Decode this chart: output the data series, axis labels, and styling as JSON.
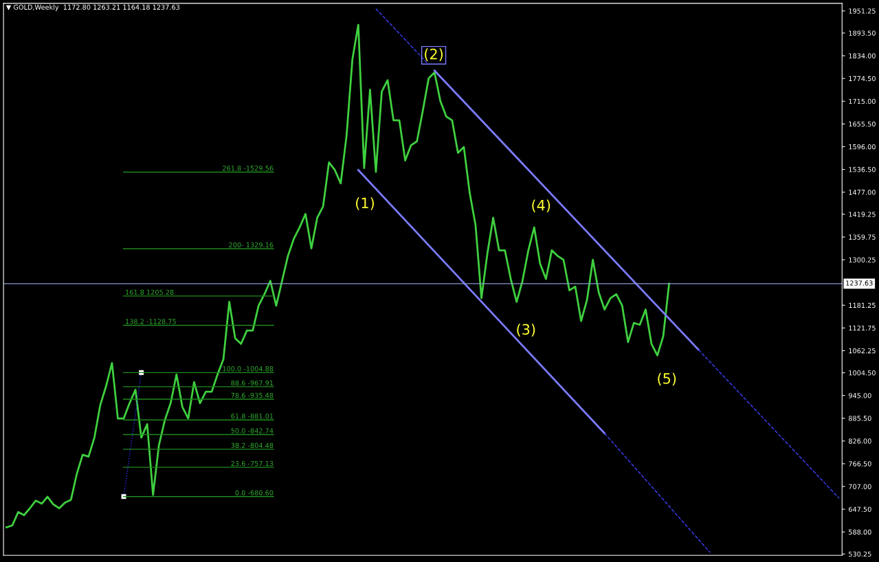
{
  "chart_data": {
    "type": "line",
    "title": "▼ GOLD,Weekly  1172.80 1263.21 1164.18 1237.63",
    "tick_labels": "y",
    "grid": false,
    "legend": false,
    "categories": [
      null,
      null,
      null,
      null,
      null,
      null,
      null,
      null,
      null,
      null,
      null,
      null,
      null,
      null,
      null,
      null,
      null,
      null,
      null,
      null,
      null,
      null,
      null,
      null,
      null,
      null,
      null,
      null,
      null,
      null,
      null,
      null,
      null,
      null,
      null,
      null,
      null,
      null,
      null,
      null,
      null,
      null,
      null,
      null,
      null,
      null,
      null,
      null,
      null,
      null,
      null,
      null,
      null,
      null,
      null,
      null,
      null,
      null,
      null,
      null,
      null,
      null,
      null,
      null,
      null,
      null,
      null,
      null,
      null,
      null,
      null,
      null,
      null,
      null,
      null,
      null,
      null,
      null,
      null,
      null,
      null,
      null,
      null,
      null,
      null,
      null,
      null,
      null,
      null,
      null,
      null,
      null,
      null,
      null,
      null,
      null,
      null,
      null,
      null,
      null,
      null,
      null,
      null,
      null,
      null,
      null,
      null,
      null,
      null,
      null,
      null,
      null,
      null,
      null,
      null,
      null,
      null,
      null,
      null,
      null,
      null,
      null,
      null,
      null,
      null,
      null,
      null,
      null,
      null,
      null,
      null,
      null,
      null,
      null,
      null,
      null,
      null,
      null,
      null,
      null,
      null,
      null,
      null
    ],
    "ylim": [
      527,
      1971
    ],
    "yticks": [
      530.25,
      {
        "value": 588,
        "label": "588.00"
      },
      {
        "value": 647.5,
        "label": "647.50"
      },
      {
        "value": 707,
        "label": "707.00"
      },
      {
        "value": 766.5,
        "label": "766.50"
      },
      {
        "value": 826,
        "label": "826.00"
      },
      {
        "value": 885.5,
        "label": "885.50"
      },
      {
        "value": 945,
        "label": "945.00"
      },
      {
        "value": 1004.5,
        "label": "1004.50"
      },
      1062.25,
      1121.75,
      1181.25,
      1300.25,
      1359.75,
      1419.25,
      {
        "value": 1477,
        "label": "1477.00"
      },
      {
        "value": 1536.5,
        "label": "1536.50"
      },
      {
        "value": 1596,
        "label": "1596.00"
      },
      {
        "value": 1655.5,
        "label": "1655.50"
      },
      {
        "value": 1715,
        "label": "1715.00"
      },
      {
        "value": 1774.5,
        "label": "1774.50"
      },
      {
        "value": 1834,
        "label": "1834.00"
      },
      {
        "value": 1893.5,
        "label": "1893.50"
      },
      1951.25
    ],
    "ref_lines": [
      {
        "axis": "y",
        "value": 1237.63,
        "label": "1237.63",
        "color": "#8a9ad0"
      },
      {
        "axis": "y",
        "value": 680.6,
        "color": "#1f8a1f"
      },
      {
        "axis": "y",
        "value": 757.13,
        "color": "#1f8a1f"
      },
      {
        "axis": "y",
        "value": 804.48,
        "color": "#1f8a1f"
      },
      {
        "axis": "y",
        "value": 842.74,
        "color": "#1f8a1f"
      },
      {
        "axis": "y",
        "value": 881.01,
        "color": "#1f8a1f"
      },
      {
        "axis": "y",
        "value": 935.48,
        "color": "#1f8a1f"
      },
      {
        "axis": "y",
        "value": 967.91,
        "color": "#1f8a1f"
      },
      {
        "axis": "y",
        "value": 1004.88,
        "color": "#1f8a1f"
      },
      {
        "axis": "y",
        "value": 1128.75,
        "color": "#1f8a1f"
      },
      {
        "axis": "y",
        "value": 1205.28,
        "color": "#1f8a1f"
      },
      {
        "axis": "y",
        "value": 1329.16,
        "color": "#1f8a1f"
      },
      {
        "axis": "y",
        "value": 1529.56,
        "color": "#1f8a1f"
      }
    ],
    "annotations": [
      "(1)",
      "(2)",
      "(3)",
      "(4)",
      "(5)",
      {
        "text": "0.0 -680.60",
        "y": 680.6
      },
      {
        "text": "23.6 -757.13",
        "y": 757.13
      },
      {
        "text": "38.2 -804.48",
        "y": 804.48
      },
      {
        "text": "50.0 -842.74",
        "y": 842.74
      },
      {
        "text": "61.8 -881.01",
        "y": 881.01
      },
      {
        "text": "78.6 -935.48",
        "y": 935.48
      },
      {
        "text": "88.6 -967.91",
        "y": 967.91
      },
      {
        "text": "100.0 -1004.88",
        "y": 1004.88
      },
      {
        "text": "138.2 -1128.75",
        "y": 1128.75
      },
      {
        "text": "161.8 1205.28",
        "y": 1205.28
      },
      {
        "text": "200- 1329.16",
        "y": 1329.16
      },
      {
        "text": "261.8 -1529.56",
        "y": 1529.56
      }
    ],
    "series": [
      {
        "color": "#3fd03f",
        "line_style": "solid",
        "marker": "none",
        "values": [
          600,
          605,
          640,
          632,
          650,
          670,
          662,
          680,
          660,
          650,
          665,
          672,
          740,
          790,
          785,
          835,
          920,
          970,
          1030,
          885,
          885,
          925,
          960,
          835,
          870,
          685,
          815,
          880,
          925,
          1000,
          915,
          885,
          980,
          925,
          955,
          955,
          1000,
          1040,
          1190,
          1095,
          1080,
          1115,
          1115,
          1180,
          1210,
          1245,
          1180,
          1245,
          1310,
          1355,
          1385,
          1420,
          1330,
          1410,
          1440,
          1555,
          1535,
          1500,
          1625,
          1825,
          1915,
          1540,
          1745,
          1530,
          1740,
          1770,
          1665,
          1665,
          1560,
          1600,
          1610,
          1690,
          1775,
          1790,
          1715,
          1675,
          1665,
          1580,
          1595,
          1475,
          1390,
          1200,
          1315,
          1410,
          1325,
          1325,
          1250,
          1190,
          1245,
          1325,
          1385,
          1290,
          1250,
          1325,
          1310,
          1300,
          1220,
          1230,
          1140,
          1195,
          1300,
          1215,
          1170,
          1200,
          1210,
          1180,
          1085,
          1135,
          1130,
          1170,
          1080,
          1050,
          1100,
          1237.63,
          null,
          null,
          null,
          null,
          null,
          null,
          null,
          null,
          null,
          null,
          null,
          null,
          null,
          null,
          null,
          null,
          null,
          null,
          null,
          null,
          null,
          null,
          null,
          null,
          null,
          null,
          null,
          null,
          null
        ]
      },
      {
        "color": "#7b7bff",
        "line_style": "solid",
        "marker": "none",
        "values": [
          null,
          null,
          null,
          null,
          null,
          null,
          null,
          null,
          null,
          null,
          null,
          null,
          null,
          null,
          null,
          null,
          null,
          null,
          null,
          null,
          null,
          null,
          null,
          null,
          null,
          null,
          null,
          null,
          null,
          null,
          null,
          null,
          null,
          null,
          null,
          null,
          null,
          null,
          null,
          null,
          null,
          null,
          null,
          null,
          null,
          null,
          null,
          null,
          null,
          null,
          null,
          null,
          null,
          null,
          null,
          null,
          null,
          null,
          null,
          null,
          null,
          null,
          null,
          null,
          null,
          null,
          null,
          null,
          null,
          null,
          null,
          null,
          null,
          1795,
          null,
          null,
          null,
          null,
          null,
          null,
          null,
          null,
          null,
          null,
          null,
          null,
          null,
          null,
          null,
          null,
          null,
          null,
          null,
          null,
          null,
          null,
          null,
          null,
          null,
          null,
          null,
          null,
          null,
          null,
          null,
          null,
          null,
          null,
          null,
          null,
          null,
          null,
          null,
          null,
          null,
          null,
          null,
          null,
          1065,
          null,
          null,
          null,
          null,
          null,
          null,
          null,
          null,
          null,
          null,
          null,
          null,
          null,
          null,
          null,
          null,
          null,
          null,
          null,
          null,
          null,
          null,
          null,
          null
        ]
      },
      {
        "color": "#4040ff",
        "line_style": "dashed",
        "marker": "none",
        "values": [
          null,
          null,
          null,
          null,
          null,
          null,
          null,
          null,
          null,
          null,
          null,
          null,
          null,
          null,
          null,
          null,
          null,
          null,
          null,
          null,
          null,
          null,
          null,
          null,
          null,
          null,
          null,
          null,
          null,
          null,
          null,
          null,
          null,
          null,
          null,
          null,
          null,
          null,
          null,
          null,
          null,
          null,
          null,
          null,
          null,
          null,
          null,
          null,
          null,
          null,
          null,
          null,
          null,
          null,
          null,
          null,
          null,
          null,
          null,
          null,
          null,
          null,
          null,
          null,
          null,
          null,
          null,
          null,
          null,
          null,
          null,
          null,
          null,
          null,
          null,
          null,
          null,
          null,
          null,
          null,
          null,
          null,
          null,
          null,
          null,
          null,
          null,
          null,
          null,
          null,
          null,
          null,
          null,
          null,
          null,
          null,
          null,
          null,
          null,
          null,
          null,
          null,
          null,
          null,
          null,
          null,
          null,
          null,
          null,
          null,
          null,
          null,
          null,
          null,
          null,
          null,
          null,
          null,
          1065,
          null,
          null,
          null,
          null,
          null,
          null,
          null,
          null,
          null,
          null,
          null,
          null,
          null,
          null,
          null,
          null,
          null,
          null,
          null,
          null,
          null,
          null,
          null,
          676
        ]
      },
      {
        "color": "#4040ff",
        "line_style": "dashed",
        "marker": "none",
        "values": [
          null,
          null,
          null,
          null,
          null,
          null,
          null,
          null,
          null,
          null,
          null,
          null,
          null,
          null,
          null,
          null,
          null,
          null,
          null,
          null,
          null,
          null,
          null,
          null,
          null,
          null,
          null,
          null,
          null,
          null,
          null,
          null,
          null,
          null,
          null,
          null,
          null,
          null,
          null,
          null,
          null,
          null,
          null,
          null,
          null,
          null,
          null,
          null,
          null,
          null,
          null,
          null,
          null,
          null,
          null,
          null,
          null,
          null,
          null,
          null,
          null,
          null,
          null,
          1957,
          null,
          null,
          null,
          null,
          null,
          null,
          null,
          null,
          1811,
          null,
          null,
          null,
          null,
          null,
          null,
          null,
          null,
          null,
          null,
          null,
          null,
          null,
          null,
          null,
          null,
          null,
          null,
          null,
          null,
          null,
          null,
          null,
          null,
          null,
          null,
          null,
          null,
          null,
          null,
          null,
          null,
          null,
          null,
          null,
          null,
          null,
          null,
          null,
          null,
          null,
          null,
          null,
          null,
          null,
          null,
          null,
          null,
          null,
          null,
          null,
          null,
          null,
          null,
          null,
          null,
          null,
          null,
          null,
          null,
          null,
          null,
          null,
          null,
          null,
          null,
          null,
          null,
          null,
          null
        ]
      },
      {
        "color": "#7b7bff",
        "line_style": "solid",
        "marker": "none",
        "values": [
          null,
          null,
          null,
          null,
          null,
          null,
          null,
          null,
          null,
          null,
          null,
          null,
          null,
          null,
          null,
          null,
          null,
          null,
          null,
          null,
          null,
          null,
          null,
          null,
          null,
          null,
          null,
          null,
          null,
          null,
          null,
          null,
          null,
          null,
          null,
          null,
          null,
          null,
          null,
          null,
          null,
          null,
          null,
          null,
          null,
          null,
          null,
          null,
          null,
          null,
          null,
          null,
          null,
          null,
          null,
          null,
          null,
          null,
          null,
          null,
          1535,
          null,
          null,
          null,
          null,
          null,
          null,
          null,
          null,
          null,
          null,
          null,
          null,
          null,
          null,
          null,
          null,
          null,
          null,
          null,
          null,
          null,
          null,
          null,
          null,
          null,
          null,
          null,
          null,
          null,
          null,
          null,
          null,
          null,
          null,
          null,
          null,
          null,
          null,
          null,
          null,
          null,
          846,
          null,
          null,
          null,
          null,
          null,
          null,
          null,
          null,
          null,
          null,
          null,
          null,
          null,
          null,
          null,
          null,
          null,
          null,
          null,
          null,
          null,
          null,
          null,
          null,
          null,
          null,
          null,
          null,
          null,
          null,
          null,
          null,
          null,
          null,
          null,
          null,
          null,
          null,
          null,
          null
        ]
      },
      {
        "color": "#4040ff",
        "line_style": "dashed",
        "marker": "none",
        "values": [
          null,
          null,
          null,
          null,
          null,
          null,
          null,
          null,
          null,
          null,
          null,
          null,
          null,
          null,
          null,
          null,
          null,
          null,
          null,
          null,
          null,
          null,
          null,
          null,
          null,
          null,
          null,
          null,
          null,
          null,
          null,
          null,
          null,
          null,
          null,
          null,
          null,
          null,
          null,
          null,
          null,
          null,
          null,
          null,
          null,
          null,
          null,
          null,
          null,
          null,
          null,
          null,
          null,
          null,
          null,
          null,
          null,
          null,
          null,
          null,
          null,
          null,
          null,
          null,
          null,
          null,
          null,
          null,
          null,
          null,
          null,
          null,
          null,
          null,
          null,
          null,
          null,
          null,
          null,
          null,
          null,
          null,
          null,
          null,
          null,
          null,
          null,
          null,
          null,
          null,
          null,
          null,
          null,
          null,
          null,
          null,
          null,
          null,
          null,
          null,
          null,
          null,
          846,
          null,
          null,
          null,
          null,
          null,
          null,
          null,
          null,
          null,
          null,
          null,
          null,
          null,
          null,
          null,
          null,
          null,
          534,
          null,
          null,
          null,
          null,
          null,
          null,
          null,
          null,
          null,
          null,
          null,
          null,
          null,
          null,
          null,
          null,
          null,
          null,
          null,
          null,
          null,
          null
        ]
      },
      {
        "color": "#3030ff",
        "line_style": "dotted",
        "marker": "square",
        "values": [
          null,
          null,
          null,
          null,
          null,
          null,
          null,
          null,
          null,
          null,
          null,
          null,
          null,
          null,
          null,
          null,
          null,
          null,
          null,
          null,
          680.6,
          null,
          null,
          1004.88,
          null,
          null,
          null,
          null,
          null,
          null,
          null,
          null,
          null,
          null,
          null,
          null,
          null,
          null,
          null,
          null,
          null,
          null,
          null,
          null,
          null,
          null,
          null,
          null,
          null,
          null,
          null,
          null,
          null,
          null,
          null,
          null,
          null,
          null,
          null,
          null,
          null,
          null,
          null,
          null,
          null,
          null,
          null,
          null,
          null,
          null,
          null,
          null,
          null,
          null,
          null,
          null,
          null,
          null,
          null,
          null,
          null,
          null,
          null,
          null,
          null,
          null,
          null,
          null,
          null,
          null,
          null,
          null,
          null,
          null,
          null,
          null,
          null,
          null,
          null,
          null,
          null,
          null,
          null,
          null,
          null,
          null,
          null,
          null,
          null,
          null,
          null,
          null,
          null,
          null,
          null,
          null,
          null,
          null,
          null,
          null,
          null,
          null,
          null,
          null,
          null,
          null,
          null,
          null,
          null,
          null,
          null,
          null,
          null,
          null,
          null,
          null,
          null,
          null,
          null,
          null,
          null,
          null,
          null
        ]
      }
    ]
  }
}
